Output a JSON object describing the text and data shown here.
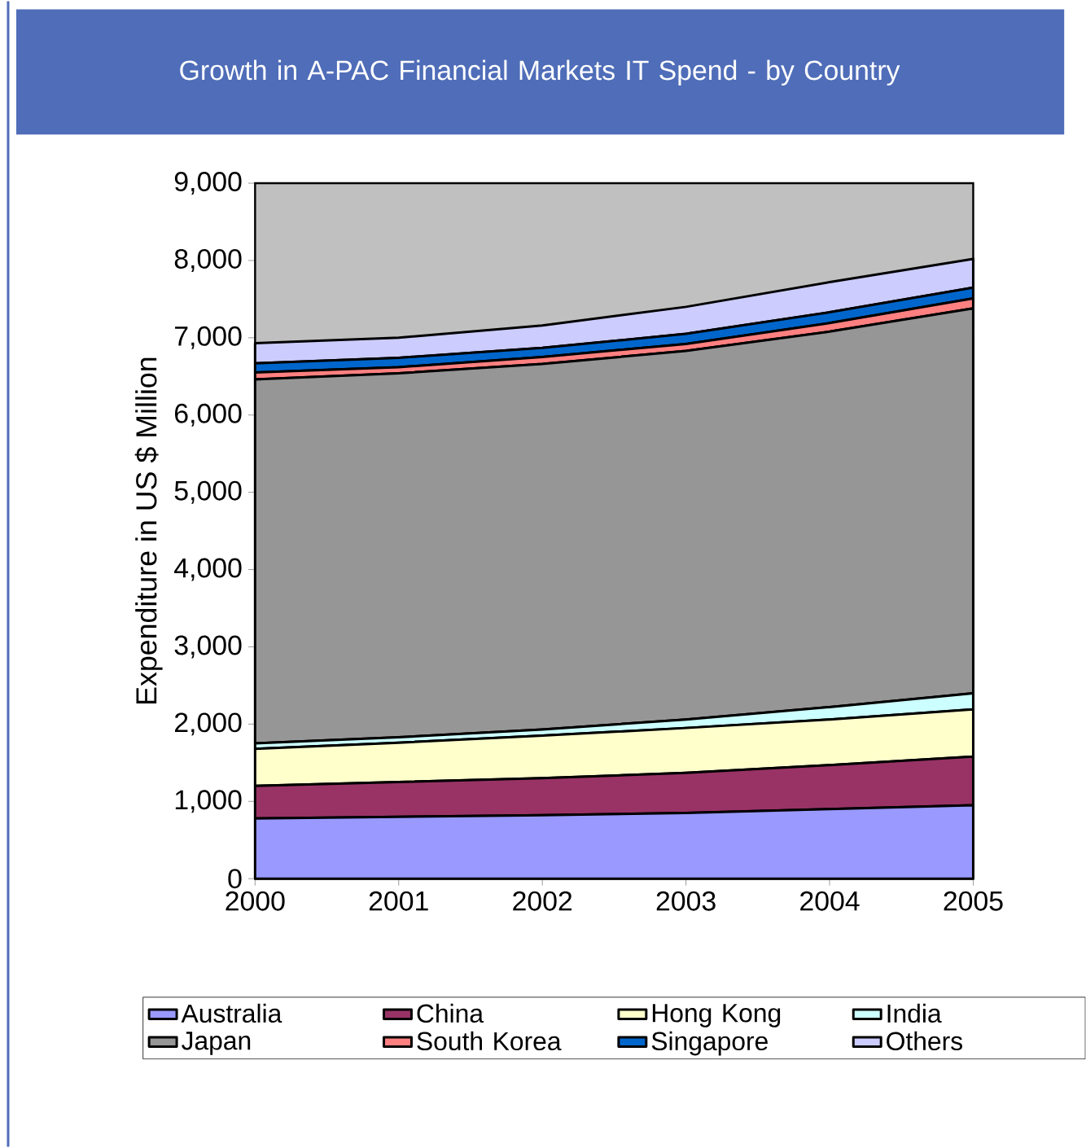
{
  "chart_data": {
    "type": "area",
    "stacked": true,
    "title": "Growth in A-PAC Financial Markets IT Spend - by Country",
    "ylabel": "Expenditure in US $ Million",
    "x": [
      2000,
      2001,
      2002,
      2003,
      2004,
      2005
    ],
    "xlim": [
      2000,
      2005
    ],
    "xticks": [
      2000,
      2001,
      2002,
      2003,
      2004,
      2005
    ],
    "ylim": [
      0,
      9000
    ],
    "yticks": [
      0,
      {
        "value": 1000,
        "label": "1,000"
      },
      {
        "value": 2000,
        "label": "2,000"
      },
      {
        "value": 3000,
        "label": "3,000"
      },
      {
        "value": 4000,
        "label": "4,000"
      },
      {
        "value": 5000,
        "label": "5,000"
      },
      {
        "value": 6000,
        "label": "6,000"
      },
      {
        "value": 7000,
        "label": "7,000"
      },
      {
        "value": 8000,
        "label": "8,000"
      },
      {
        "value": 9000,
        "label": "9,000"
      }
    ],
    "legend": "bottom",
    "series": [
      {
        "name": "Australia",
        "color": "#9999ff",
        "values": [
          780,
          800,
          820,
          850,
          900,
          950
        ]
      },
      {
        "name": "China",
        "color": "#993366",
        "values": [
          420,
          450,
          480,
          520,
          570,
          630
        ]
      },
      {
        "name": "Hong Kong",
        "color": "#ffffcc",
        "values": [
          480,
          510,
          550,
          580,
          590,
          610
        ]
      },
      {
        "name": "India",
        "color": "#ccffff",
        "values": [
          70,
          70,
          80,
          110,
          160,
          210
        ]
      },
      {
        "name": "Japan",
        "color": "#969696",
        "values": [
          4710,
          4710,
          4730,
          4770,
          4860,
          4980
        ]
      },
      {
        "name": "South Korea",
        "color": "#ff8080",
        "values": [
          90,
          80,
          90,
          90,
          110,
          130
        ]
      },
      {
        "name": "Singapore",
        "color": "#0066cc",
        "values": [
          120,
          120,
          120,
          130,
          140,
          140
        ]
      },
      {
        "name": "Others",
        "color": "#ccccff",
        "values": [
          260,
          260,
          290,
          350,
          390,
          370
        ]
      }
    ]
  }
}
